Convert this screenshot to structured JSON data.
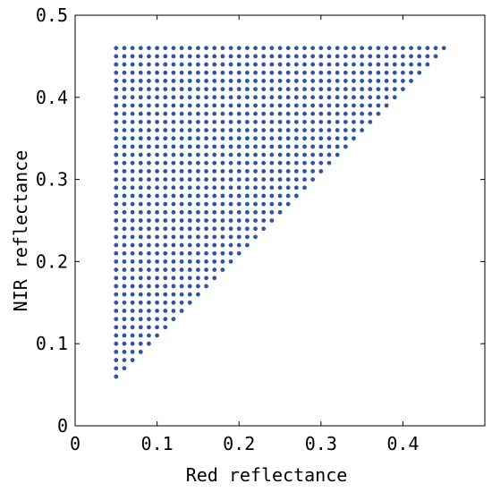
{
  "chart_data": {
    "type": "scatter",
    "title": "",
    "xlabel": "Red reflectance",
    "ylabel": "NIR reflectance",
    "xlim": [
      0,
      0.5
    ],
    "ylim": [
      0,
      0.5
    ],
    "x_ticks": [
      0,
      0.1,
      0.2,
      0.3,
      0.4
    ],
    "x_tick_labels": [
      "0",
      "0.1",
      "0.2",
      "0.3",
      "0.4"
    ],
    "y_ticks": [
      0,
      0.1,
      0.2,
      0.3,
      0.4,
      0.5
    ],
    "y_tick_labels": [
      "0",
      "0.1",
      "0.2",
      "0.3",
      "0.4",
      "0.5"
    ],
    "grid": false,
    "legend": "none",
    "marker_color": "#2e55a5",
    "series": [
      {
        "grid_description": "Lower-right triangular lattice of points, spacing 0.01 in both red and NIR reflectance",
        "red_range": [
          0.05,
          0.45
        ],
        "nir_range": [
          0.06,
          0.46
        ],
        "step": 0.01,
        "condition": "NIR >= Red + 0.01"
      }
    ]
  }
}
